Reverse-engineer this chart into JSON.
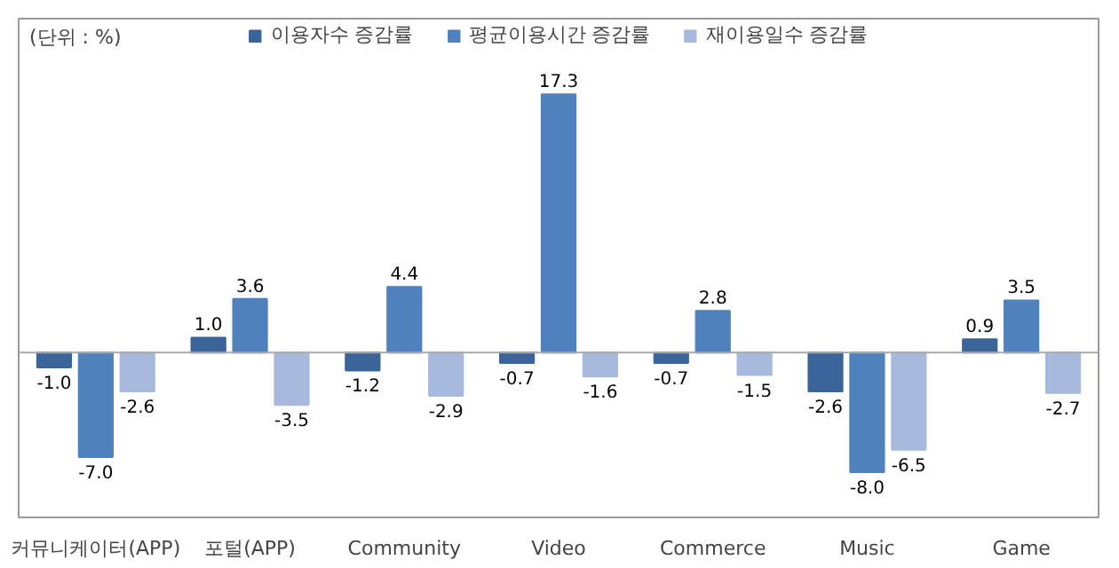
{
  "chart_data": {
    "type": "bar",
    "categories": [
      "커뮤니케이터(APP)",
      "포털(APP)",
      "Community",
      "Video",
      "Commerce",
      "Music",
      "Game"
    ],
    "series": [
      {
        "name": "이용자수 증감률",
        "color": "#3b649a",
        "values": [
          -1.0,
          1.0,
          -1.2,
          -0.7,
          -0.7,
          -2.6,
          0.9
        ],
        "value_labels": [
          "-1.0",
          "1.0",
          "-1.2",
          "-0.7",
          "-0.7",
          "-2.6",
          "0.9"
        ]
      },
      {
        "name": "평균이용시간 증감률",
        "color": "#4f81bd",
        "values": [
          -7.0,
          3.6,
          4.4,
          17.3,
          2.8,
          -8.0,
          3.5
        ],
        "value_labels": [
          "-7.0",
          "3.6",
          "4.4",
          "17.3",
          "2.8",
          "-8.0",
          "3.5"
        ]
      },
      {
        "name": "재이용일수 증감률",
        "color": "#a7b9dd",
        "values": [
          -2.6,
          -3.5,
          -2.9,
          -1.6,
          -1.5,
          -6.5,
          -2.7
        ],
        "value_labels": [
          "-2.6",
          "-3.5",
          "-2.9",
          "-1.6",
          "-1.5",
          "-6.5",
          "-2.7"
        ]
      }
    ],
    "legend": "top",
    "grid": false,
    "annotations": [
      "(단위 : %)"
    ]
  }
}
